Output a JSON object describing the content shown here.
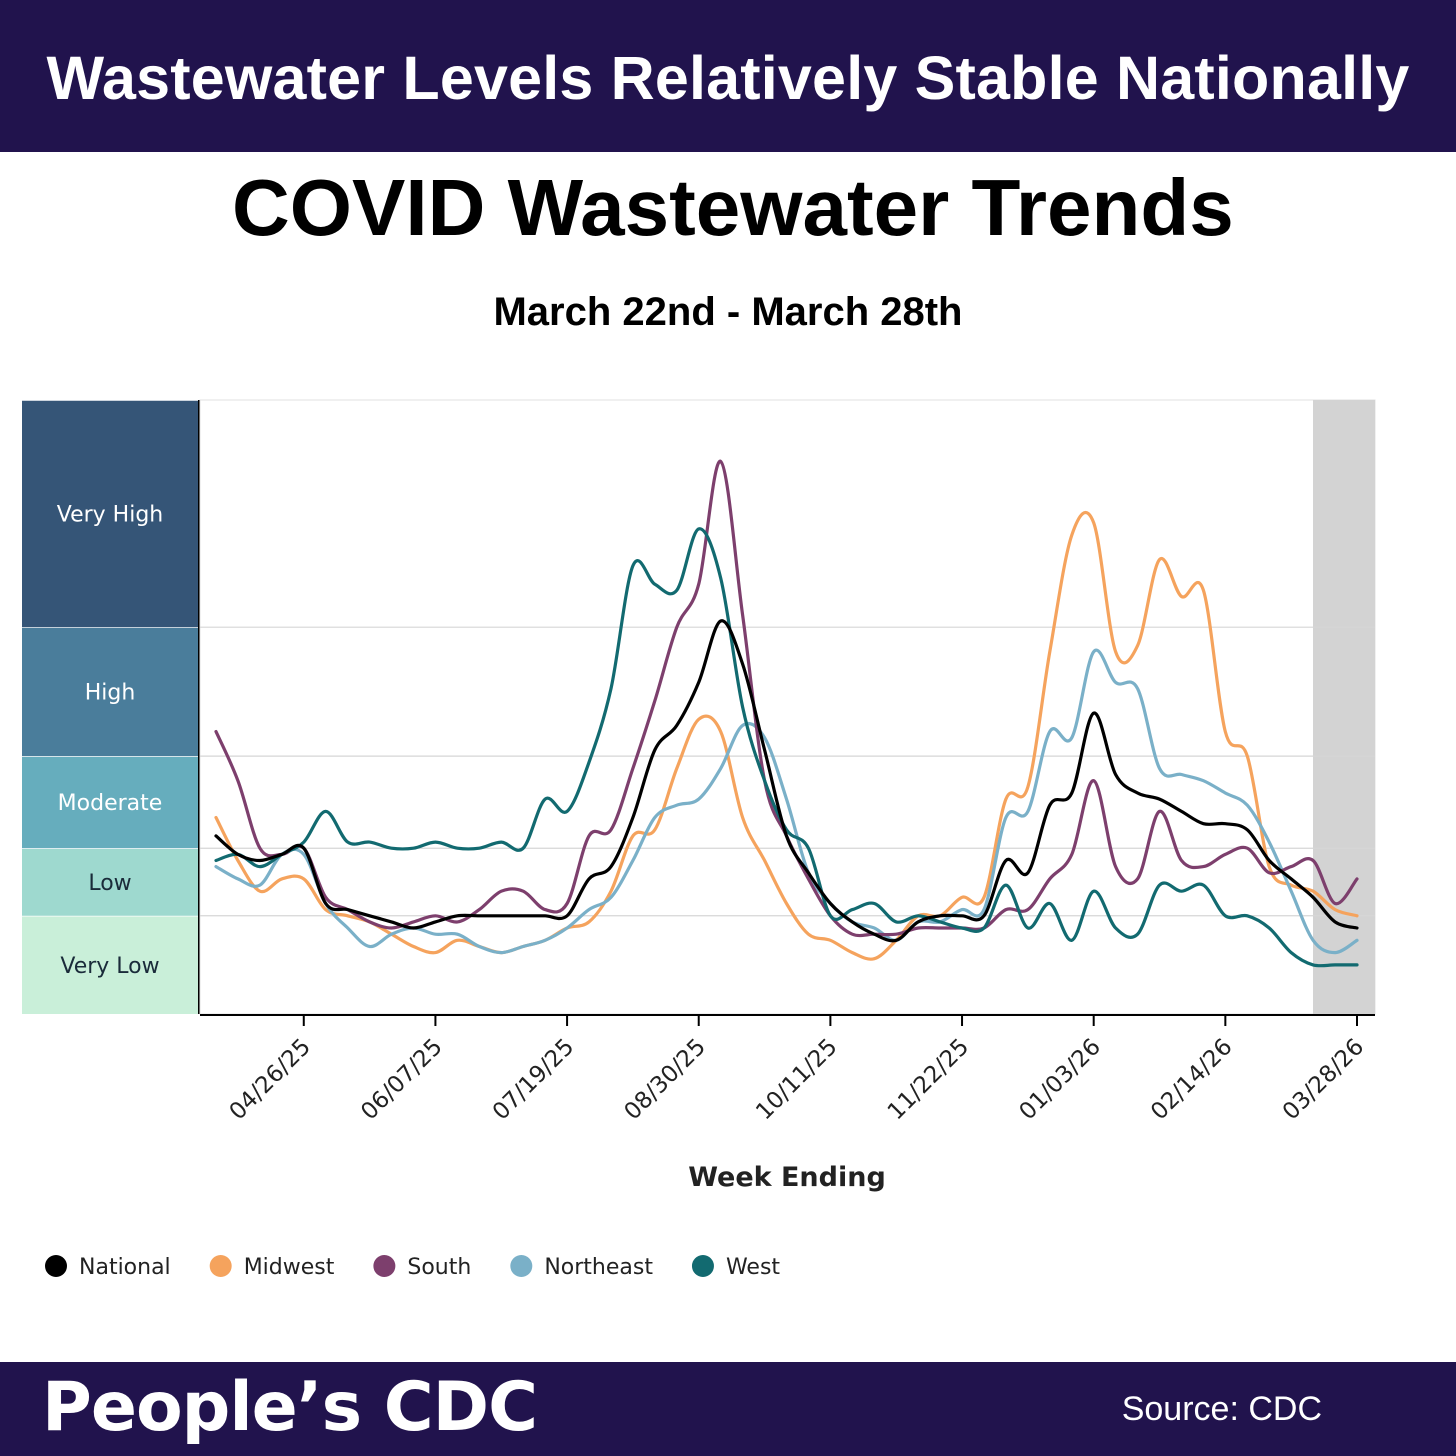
{
  "banner": {
    "headline": "Wastewater Levels Relatively Stable Nationally"
  },
  "chart": {
    "title": "COVID Wastewater Trends",
    "subtitle": "March 22nd - March 28th"
  },
  "footer": {
    "brand": "People’s CDC",
    "source": "Source: CDC"
  },
  "chart_data": {
    "type": "line",
    "title": "COVID Wastewater Trends",
    "subtitle": "March 22nd - March 28th",
    "xlabel": "Week Ending",
    "ylabel": "",
    "x_tick_labels": [
      "04/26/25",
      "06/07/25",
      "07/19/25",
      "08/30/25",
      "10/11/25",
      "11/22/25",
      "01/03/26",
      "02/14/26",
      "03/28/26"
    ],
    "x": [
      "03/29/25",
      "04/05/25",
      "04/12/25",
      "04/19/25",
      "04/26/25",
      "05/03/25",
      "05/10/25",
      "05/17/25",
      "05/24/25",
      "05/31/25",
      "06/07/25",
      "06/14/25",
      "06/21/25",
      "06/28/25",
      "07/05/25",
      "07/12/25",
      "07/19/25",
      "07/26/25",
      "08/02/25",
      "08/09/25",
      "08/16/25",
      "08/23/25",
      "08/30/25",
      "09/06/25",
      "09/13/25",
      "09/20/25",
      "09/27/25",
      "10/04/25",
      "10/11/25",
      "10/18/25",
      "10/25/25",
      "11/01/25",
      "11/08/25",
      "11/15/25",
      "11/22/25",
      "11/29/25",
      "12/06/25",
      "12/13/25",
      "12/20/25",
      "12/27/25",
      "01/03/26",
      "01/10/26",
      "01/17/26",
      "01/24/26",
      "01/31/26",
      "02/07/26",
      "02/14/26",
      "02/21/26",
      "02/28/26",
      "03/07/26",
      "03/14/26",
      "03/21/26",
      "03/28/26"
    ],
    "y_scale": "relative activity index (0 = bottom, 10 = top of Very High band)",
    "ylim": [
      0,
      10
    ],
    "levels": [
      {
        "name": "Very Low",
        "from": 0,
        "to": 1.6,
        "color": "#c9efd9"
      },
      {
        "name": "Low",
        "from": 1.6,
        "to": 2.7,
        "color": "#9ed9cf"
      },
      {
        "name": "Moderate",
        "from": 2.7,
        "to": 4.2,
        "color": "#66adbd"
      },
      {
        "name": "High",
        "from": 4.2,
        "to": 6.3,
        "color": "#4a7d9b"
      },
      {
        "name": "Very High",
        "from": 6.3,
        "to": 10,
        "color": "#355577"
      }
    ],
    "shaded_region": {
      "from": "03/14/26",
      "to": "03/28/26",
      "color": "#d3d3d3"
    },
    "grid": "horizontal lines at level boundaries",
    "legend_position": "bottom-left",
    "series": [
      {
        "name": "National",
        "color": "#000000",
        "values": [
          2.9,
          2.6,
          2.5,
          2.6,
          2.7,
          1.8,
          1.7,
          1.6,
          1.5,
          1.4,
          1.5,
          1.6,
          1.6,
          1.6,
          1.6,
          1.6,
          1.6,
          2.2,
          2.4,
          3.2,
          4.3,
          4.7,
          5.4,
          6.4,
          5.7,
          4.3,
          2.9,
          2.3,
          1.8,
          1.5,
          1.3,
          1.2,
          1.5,
          1.6,
          1.6,
          1.6,
          2.5,
          2.3,
          3.4,
          3.6,
          4.9,
          3.9,
          3.6,
          3.5,
          3.3,
          3.1,
          3.1,
          3.0,
          2.5,
          2.2,
          1.9,
          1.5,
          1.4
        ]
      },
      {
        "name": "Midwest",
        "color": "#f5a35d",
        "values": [
          3.2,
          2.5,
          2.0,
          2.2,
          2.2,
          1.7,
          1.6,
          1.5,
          1.3,
          1.1,
          1.0,
          1.2,
          1.1,
          1.0,
          1.1,
          1.2,
          1.4,
          1.5,
          2.0,
          2.9,
          3.0,
          4.0,
          4.8,
          4.6,
          3.2,
          2.5,
          1.8,
          1.3,
          1.2,
          1.0,
          0.9,
          1.2,
          1.6,
          1.6,
          1.9,
          1.9,
          3.5,
          3.7,
          5.9,
          7.8,
          8.0,
          5.9,
          6.0,
          7.4,
          6.8,
          6.9,
          4.6,
          4.2,
          2.4,
          2.1,
          2.0,
          1.7,
          1.6
        ]
      },
      {
        "name": "South",
        "color": "#7d3f6d",
        "values": [
          4.6,
          3.8,
          2.7,
          2.6,
          2.7,
          1.9,
          1.7,
          1.5,
          1.4,
          1.5,
          1.6,
          1.5,
          1.7,
          2.0,
          2.0,
          1.7,
          1.8,
          2.9,
          3.0,
          4.0,
          5.1,
          6.3,
          7.0,
          9.0,
          6.5,
          3.8,
          2.9,
          2.2,
          1.6,
          1.3,
          1.3,
          1.3,
          1.4,
          1.4,
          1.4,
          1.4,
          1.7,
          1.7,
          2.2,
          2.6,
          3.8,
          2.4,
          2.2,
          3.3,
          2.5,
          2.4,
          2.6,
          2.7,
          2.3,
          2.4,
          2.5,
          1.8,
          2.2
        ]
      },
      {
        "name": "Northeast",
        "color": "#7ab0c8",
        "values": [
          2.4,
          2.2,
          2.1,
          2.6,
          2.6,
          1.8,
          1.4,
          1.1,
          1.3,
          1.4,
          1.3,
          1.3,
          1.1,
          1.0,
          1.1,
          1.2,
          1.4,
          1.7,
          1.9,
          2.5,
          3.2,
          3.4,
          3.5,
          4.0,
          4.7,
          4.5,
          3.5,
          2.3,
          1.8,
          1.5,
          1.4,
          1.2,
          1.5,
          1.5,
          1.7,
          1.7,
          3.2,
          3.3,
          4.6,
          4.5,
          5.9,
          5.4,
          5.3,
          4.0,
          3.9,
          3.8,
          3.6,
          3.4,
          2.8,
          2.0,
          1.2,
          1.0,
          1.2
        ]
      },
      {
        "name": "West",
        "color": "#126a70",
        "values": [
          2.5,
          2.6,
          2.4,
          2.6,
          2.8,
          3.3,
          2.8,
          2.8,
          2.7,
          2.7,
          2.8,
          2.7,
          2.7,
          2.8,
          2.7,
          3.5,
          3.3,
          4.1,
          5.3,
          7.3,
          7.0,
          6.9,
          7.9,
          7.1,
          5.0,
          3.8,
          3.0,
          2.7,
          1.6,
          1.7,
          1.8,
          1.5,
          1.6,
          1.5,
          1.4,
          1.4,
          2.1,
          1.4,
          1.8,
          1.2,
          2.0,
          1.4,
          1.3,
          2.1,
          2.0,
          2.1,
          1.6,
          1.6,
          1.4,
          1.0,
          0.8,
          0.8,
          0.8
        ]
      }
    ]
  }
}
